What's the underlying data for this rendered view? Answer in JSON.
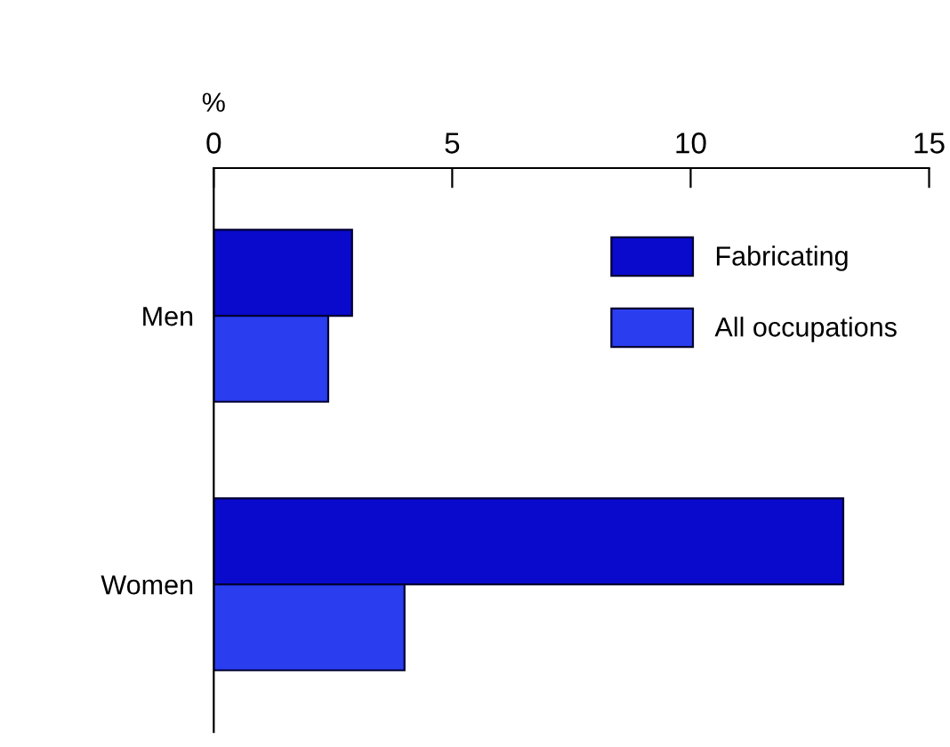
{
  "chart_data": {
    "type": "bar",
    "orientation": "horizontal",
    "xlabel": "%",
    "categories": [
      "Men",
      "Women"
    ],
    "series": [
      {
        "name": "Fabricating",
        "color": "#0a0acc",
        "values": [
          2.9,
          13.2
        ]
      },
      {
        "name": "All occupations",
        "color": "#2a3ef0",
        "values": [
          2.4,
          4.0
        ]
      }
    ],
    "xlim": [
      0,
      15
    ],
    "xticks": [
      0,
      5,
      10,
      15
    ],
    "legend": "right",
    "grid": false
  }
}
